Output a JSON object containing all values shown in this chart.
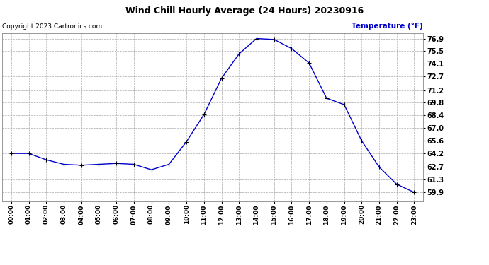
{
  "title": "Wind Chill Hourly Average (24 Hours) 20230916",
  "ylabel": "Temperature (°F)",
  "copyright_text": "Copyright 2023 Cartronics.com",
  "hours": [
    0,
    1,
    2,
    3,
    4,
    5,
    6,
    7,
    8,
    9,
    10,
    11,
    12,
    13,
    14,
    15,
    16,
    17,
    18,
    19,
    20,
    21,
    22,
    23
  ],
  "hour_labels": [
    "00:00",
    "01:00",
    "02:00",
    "03:00",
    "04:00",
    "05:00",
    "06:00",
    "07:00",
    "08:00",
    "09:00",
    "10:00",
    "11:00",
    "12:00",
    "13:00",
    "14:00",
    "15:00",
    "16:00",
    "17:00",
    "18:00",
    "19:00",
    "20:00",
    "21:00",
    "22:00",
    "23:00"
  ],
  "values": [
    64.2,
    64.2,
    63.5,
    63.0,
    62.9,
    63.0,
    63.1,
    63.0,
    62.4,
    63.0,
    65.5,
    68.5,
    72.5,
    75.2,
    76.9,
    76.8,
    75.8,
    74.2,
    70.3,
    69.6,
    65.6,
    62.7,
    60.8,
    59.9
  ],
  "line_color": "#0000cc",
  "marker_color": "#000000",
  "ylabel_color": "#0000cc",
  "background_color": "#ffffff",
  "grid_color": "#aaaaaa",
  "ylim_min": 58.9,
  "ylim_max": 77.5,
  "yticks": [
    59.9,
    61.3,
    62.7,
    64.2,
    65.6,
    67.0,
    68.4,
    69.8,
    71.2,
    72.7,
    74.1,
    75.5,
    76.9
  ]
}
